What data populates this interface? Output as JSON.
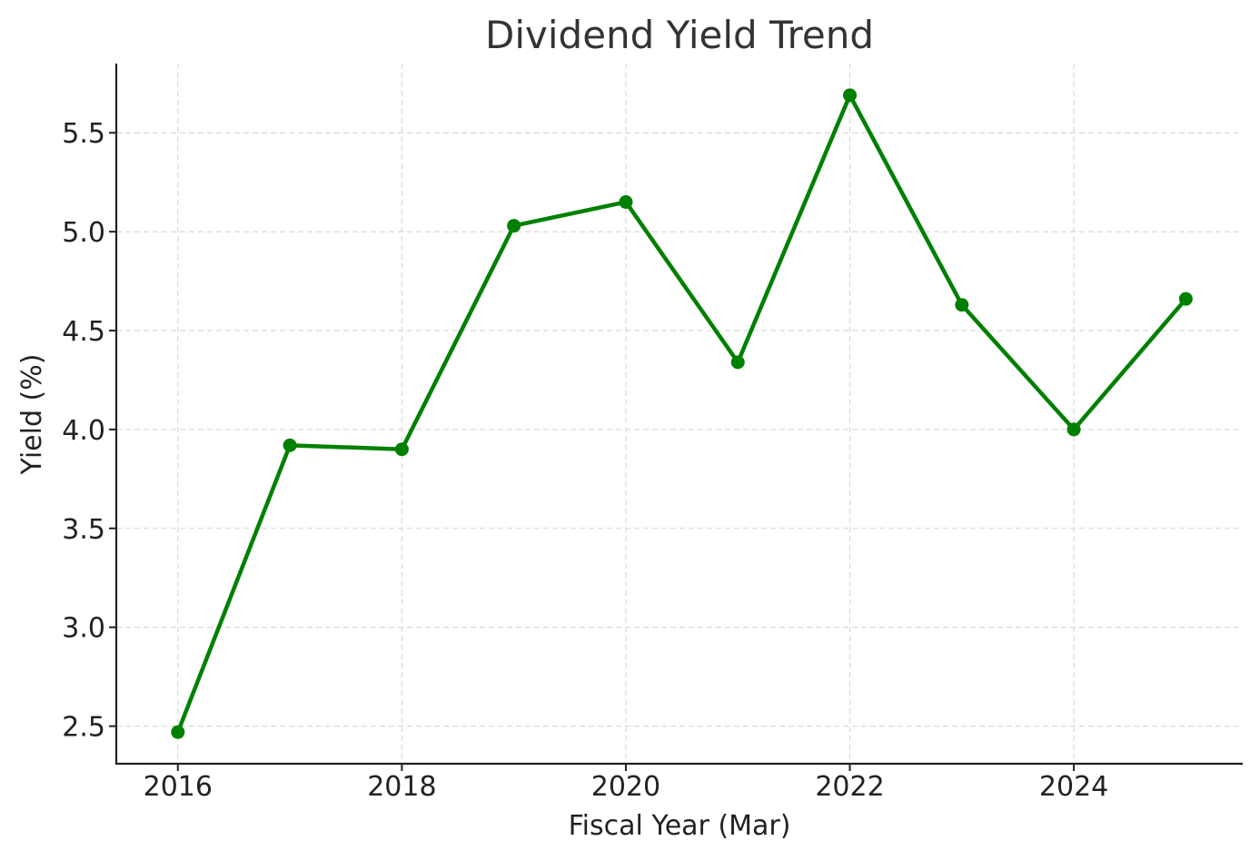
{
  "chart_data": {
    "type": "line",
    "title": "Dividend Yield Trend",
    "xlabel": "Fiscal Year (Mar)",
    "ylabel": "Yield (%)",
    "x": [
      2016,
      2017,
      2018,
      2019,
      2020,
      2021,
      2022,
      2023,
      2024,
      2025
    ],
    "series": [
      {
        "values": [
          2.47,
          3.92,
          3.9,
          5.03,
          5.15,
          4.34,
          5.69,
          4.63,
          4.0,
          4.66
        ],
        "color": "#008000",
        "marker": "circle"
      }
    ],
    "xlim": [
      2015.45,
      2025.5
    ],
    "ylim": [
      2.31,
      5.85
    ],
    "x_ticks": [
      "2016",
      "2018",
      "2020",
      "2022",
      "2024"
    ],
    "y_ticks": [
      "2.5",
      "3.0",
      "3.5",
      "4.0",
      "4.5",
      "5.0",
      "5.5"
    ],
    "grid": true,
    "legend": "none"
  }
}
